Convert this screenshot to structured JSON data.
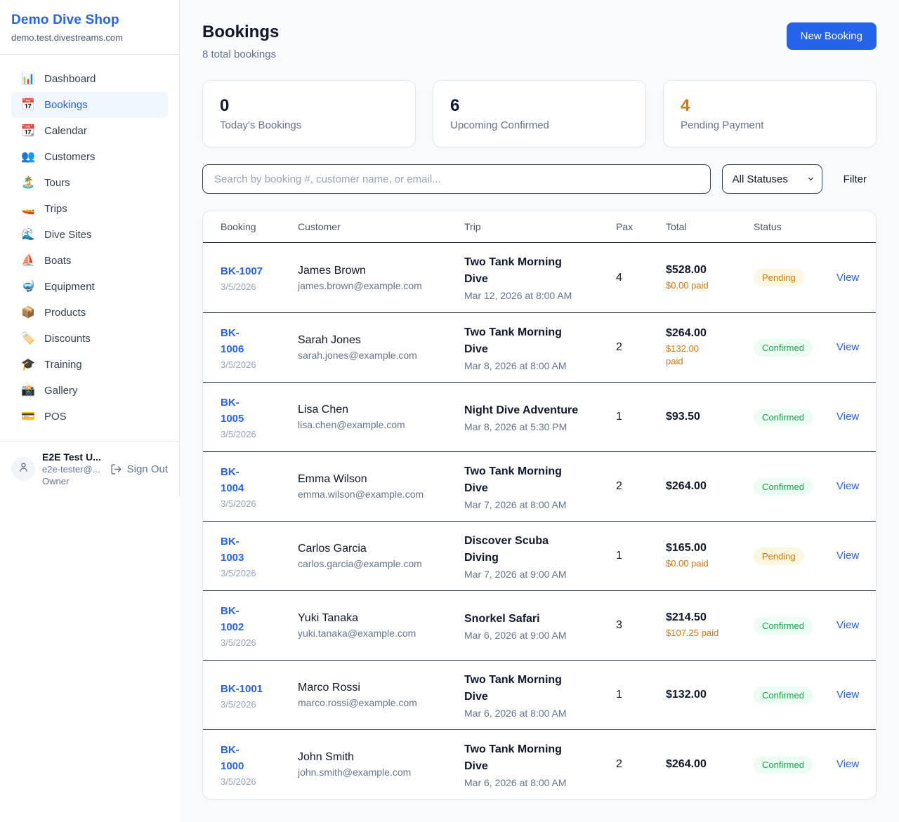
{
  "sidebar": {
    "brand": {
      "name": "Demo Dive Shop",
      "domain": "demo.test.divestreams.com"
    },
    "active_item": "Bookings",
    "nav": [
      {
        "label": "Dashboard",
        "icon": "📊",
        "icon_name": "bar-chart-icon"
      },
      {
        "label": "Bookings",
        "icon": "📅",
        "icon_name": "calendar-icon"
      },
      {
        "label": "Calendar",
        "icon": "📆",
        "icon_name": "tear-off-calendar-icon"
      },
      {
        "label": "Customers",
        "icon": "👥",
        "icon_name": "people-icon"
      },
      {
        "label": "Tours",
        "icon": "🏝️",
        "icon_name": "island-icon"
      },
      {
        "label": "Trips",
        "icon": "🚤",
        "icon_name": "speedboat-icon"
      },
      {
        "label": "Dive Sites",
        "icon": "🌊",
        "icon_name": "wave-icon"
      },
      {
        "label": "Boats",
        "icon": "⛵",
        "icon_name": "sailboat-icon"
      },
      {
        "label": "Equipment",
        "icon": "🤿",
        "icon_name": "diving-mask-icon"
      },
      {
        "label": "Products",
        "icon": "📦",
        "icon_name": "package-icon"
      },
      {
        "label": "Discounts",
        "icon": "🏷️",
        "icon_name": "tag-icon"
      },
      {
        "label": "Training",
        "icon": "🎓",
        "icon_name": "graduation-cap-icon"
      },
      {
        "label": "Gallery",
        "icon": "📸",
        "icon_name": "camera-icon"
      },
      {
        "label": "POS",
        "icon": "💳",
        "icon_name": "credit-card-icon"
      }
    ],
    "user": {
      "name": "E2E Test U...",
      "email": "e2e-tester@...",
      "role": "Owner",
      "sign_out_label": "Sign Out"
    }
  },
  "header": {
    "title": "Bookings",
    "subtitle": "8 total bookings",
    "new_booking_label": "New Booking"
  },
  "stats": [
    {
      "value": "0",
      "label": "Today's Bookings"
    },
    {
      "value": "6",
      "label": "Upcoming Confirmed"
    },
    {
      "value": "4",
      "label": "Pending Payment",
      "accent": "orange"
    }
  ],
  "filters": {
    "search_placeholder": "Search by booking #, customer name, or email...",
    "status_filter_value": "All Statuses",
    "filter_label": "Filter"
  },
  "table": {
    "columns": [
      "Booking",
      "Customer",
      "Trip",
      "Pax",
      "Total",
      "Status"
    ],
    "rows": [
      {
        "id": "BK-1007",
        "date": "3/5/2026",
        "customer": "James Brown",
        "email": "james.brown@example.com",
        "trip": "Two Tank Morning\nDive",
        "trip_time": "Mar 12, 2026 at 8:00 AM",
        "pax": "4",
        "total": "$528.00",
        "paid": "$0.00 paid",
        "status": "Pending",
        "status_type": "pending",
        "view": "View"
      },
      {
        "id": "BK-\n1006",
        "date": "3/5/2026",
        "customer": "Sarah Jones",
        "email": "sarah.jones@example.com",
        "trip": "Two Tank Morning\nDive",
        "trip_time": "Mar 8, 2026 at 8:00 AM",
        "pax": "2",
        "total": "$264.00",
        "paid": "$132.00\npaid",
        "status": "Confirmed",
        "status_type": "confirmed",
        "view": "View"
      },
      {
        "id": "BK-\n1005",
        "date": "3/5/2026",
        "customer": "Lisa Chen",
        "email": "lisa.chen@example.com",
        "trip": "Night Dive Adventure",
        "trip_time": "Mar 8, 2026 at 5:30 PM",
        "pax": "1",
        "total": "$93.50",
        "paid": null,
        "status": "Confirmed",
        "status_type": "confirmed",
        "view": "View"
      },
      {
        "id": "BK-\n1004",
        "date": "3/5/2026",
        "customer": "Emma Wilson",
        "email": "emma.wilson@example.com",
        "trip": "Two Tank Morning\nDive",
        "trip_time": "Mar 7, 2026 at 8:00 AM",
        "pax": "2",
        "total": "$264.00",
        "paid": null,
        "status": "Confirmed",
        "status_type": "confirmed",
        "view": "View"
      },
      {
        "id": "BK-\n1003",
        "date": "3/5/2026",
        "customer": "Carlos Garcia",
        "email": "carlos.garcia@example.com",
        "trip": "Discover Scuba\nDiving",
        "trip_time": "Mar 7, 2026 at 9:00 AM",
        "pax": "1",
        "total": "$165.00",
        "paid": "$0.00 paid",
        "status": "Pending",
        "status_type": "pending",
        "view": "View"
      },
      {
        "id": "BK-\n1002",
        "date": "3/5/2026",
        "customer": "Yuki Tanaka",
        "email": "yuki.tanaka@example.com",
        "trip": "Snorkel Safari",
        "trip_time": "Mar 6, 2026 at 9:00 AM",
        "pax": "3",
        "total": "$214.50",
        "paid": "$107.25 paid",
        "status": "Confirmed",
        "status_type": "confirmed",
        "view": "View"
      },
      {
        "id": "BK-1001",
        "date": "3/5/2026",
        "customer": "Marco Rossi",
        "email": "marco.rossi@example.com",
        "trip": "Two Tank Morning\nDive",
        "trip_time": "Mar 6, 2026 at 8:00 AM",
        "pax": "1",
        "total": "$132.00",
        "paid": null,
        "status": "Confirmed",
        "status_type": "confirmed",
        "view": "View"
      },
      {
        "id": "BK-\n1000",
        "date": "3/5/2026",
        "customer": "John Smith",
        "email": "john.smith@example.com",
        "trip": "Two Tank Morning\nDive",
        "trip_time": "Mar 6, 2026 at 8:00 AM",
        "pax": "2",
        "total": "$264.00",
        "paid": null,
        "status": "Confirmed",
        "status_type": "confirmed",
        "view": "View"
      }
    ]
  },
  "colors": {
    "primary": "#2563eb",
    "pending_text": "#d97706",
    "pending_bg": "#fdf6e0",
    "confirmed_text": "#16a34a",
    "confirmed_bg": "#ecfdf3",
    "paid_amount": "#d97706",
    "page_bg": "#f8fafc"
  }
}
